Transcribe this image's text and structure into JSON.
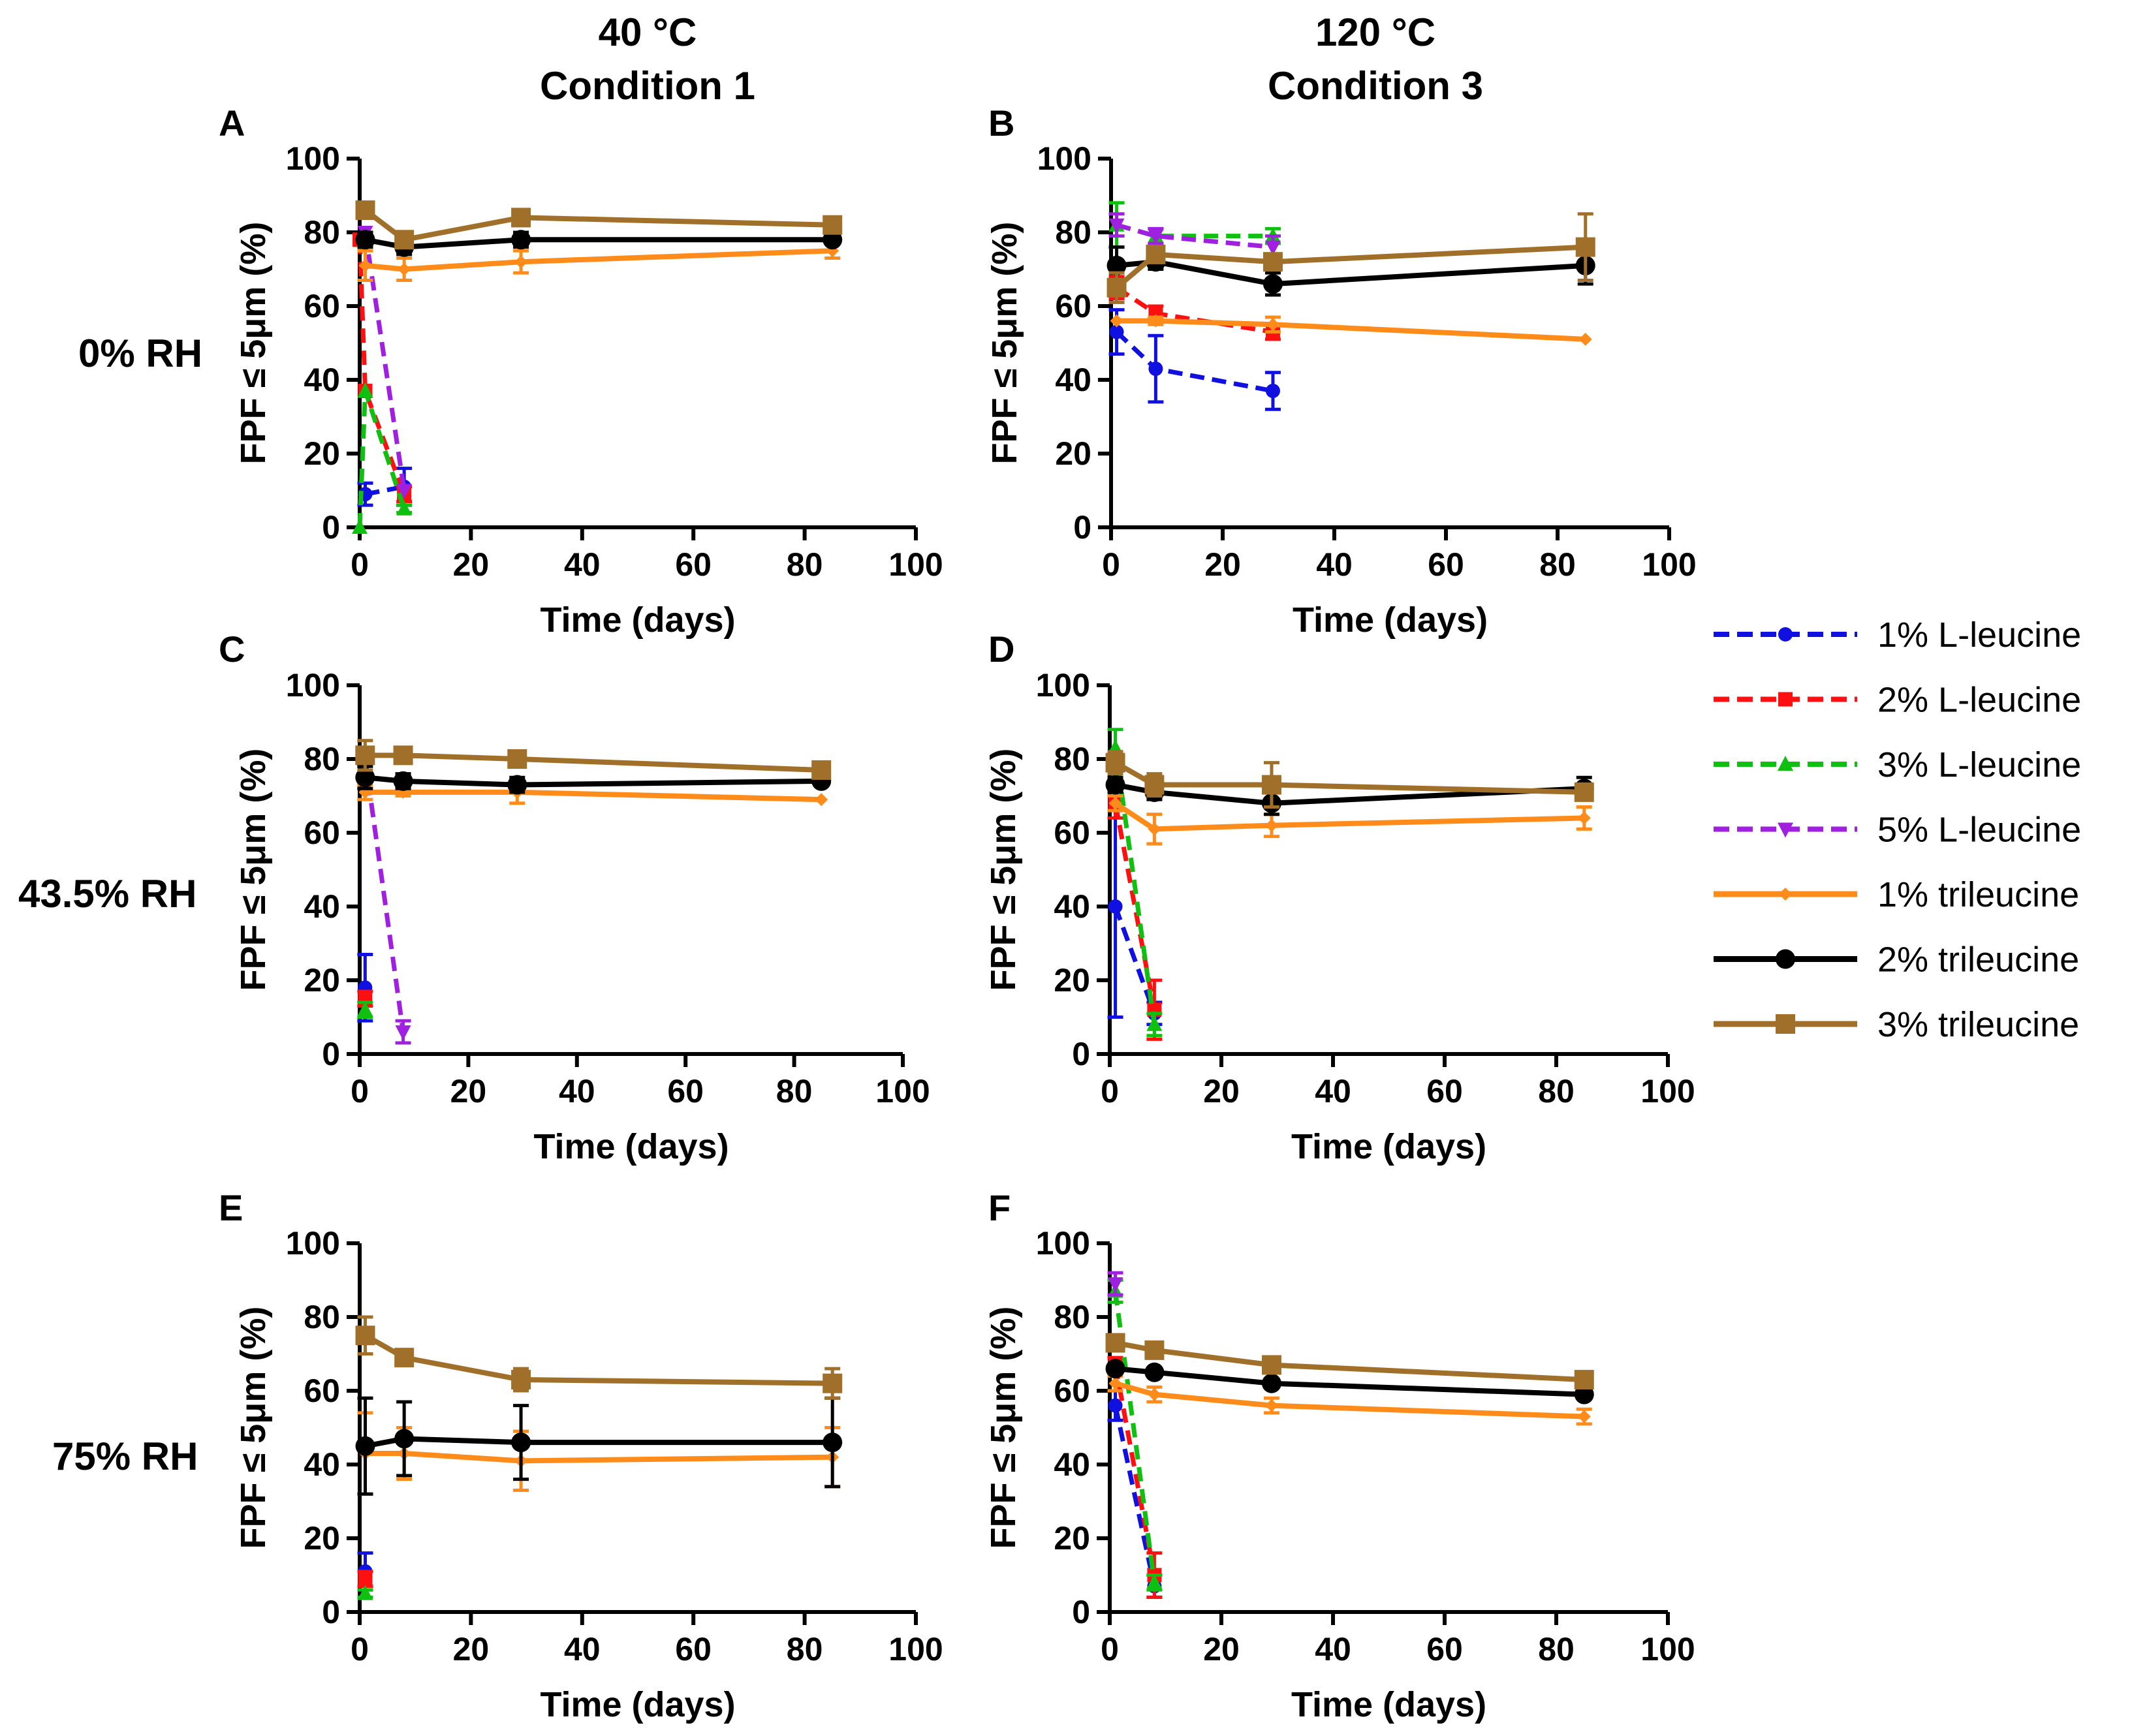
{
  "column_headers": [
    {
      "temp": "40 °C",
      "condition": "Condition 1"
    },
    {
      "temp": "120 °C",
      "condition": "Condition 3"
    }
  ],
  "row_labels": [
    "0% RH",
    "43.5% RH",
    "75% RH"
  ],
  "legend": [
    {
      "label": "1% L-leucine",
      "color": "#1010e0",
      "dash": true,
      "marker": "circle"
    },
    {
      "label": "2% L-leucine",
      "color": "#ff1010",
      "dash": true,
      "marker": "square"
    },
    {
      "label": "3% L-leucine",
      "color": "#10c010",
      "dash": true,
      "marker": "triangle-up"
    },
    {
      "label": "5% L-leucine",
      "color": "#a020e0",
      "dash": true,
      "marker": "triangle-down"
    },
    {
      "label": "1% trileucine",
      "color": "#ff8c1a",
      "dash": false,
      "marker": "diamond"
    },
    {
      "label": "2% trileucine",
      "color": "#000000",
      "dash": false,
      "marker": "circle-lg"
    },
    {
      "label": "3% trileucine",
      "color": "#a0702a",
      "dash": false,
      "marker": "square-lg"
    }
  ],
  "chart_data": [
    {
      "type": "line",
      "panel": "A",
      "xlabel": "Time (days)",
      "ylabel": "FPF ≤ 5μm (%)",
      "xlim": [
        0,
        100
      ],
      "ylim": [
        0,
        100
      ],
      "xticks": [
        "0",
        "20",
        "40",
        "60",
        "80",
        "100"
      ],
      "yticks": [
        "0",
        "20",
        "40",
        "60",
        "80",
        "100"
      ],
      "series": [
        {
          "name": "1% L-leucine",
          "x": [
            1,
            8
          ],
          "y": [
            9,
            11
          ],
          "err": [
            3,
            5
          ]
        },
        {
          "name": "2% L-leucine",
          "x": [
            0,
            1,
            8
          ],
          "y": [
            78,
            37,
            9
          ],
          "err": [
            0,
            0,
            2
          ]
        },
        {
          "name": "3% L-leucine",
          "x": [
            0,
            1,
            8
          ],
          "y": [
            0,
            37,
            5
          ],
          "err": [
            0,
            0,
            1
          ]
        },
        {
          "name": "5% L-leucine",
          "x": [
            1,
            8
          ],
          "y": [
            80,
            10
          ],
          "err": [
            0,
            0
          ]
        },
        {
          "name": "1% trileucine",
          "x": [
            1,
            8,
            29,
            85
          ],
          "y": [
            71,
            70,
            72,
            75
          ],
          "err": [
            4,
            3,
            3,
            2
          ]
        },
        {
          "name": "2% trileucine",
          "x": [
            1,
            8,
            29,
            85
          ],
          "y": [
            78,
            76,
            78,
            78
          ],
          "err": [
            2,
            2,
            2,
            1
          ]
        },
        {
          "name": "3% trileucine",
          "x": [
            1,
            8,
            29,
            85
          ],
          "y": [
            86,
            78,
            84,
            82
          ],
          "err": [
            1,
            1,
            1,
            1
          ]
        }
      ]
    },
    {
      "type": "line",
      "panel": "B",
      "xlabel": "Time (days)",
      "ylabel": "FPF ≤ 5μm (%)",
      "xlim": [
        0,
        100
      ],
      "ylim": [
        0,
        100
      ],
      "xticks": [
        "0",
        "20",
        "40",
        "60",
        "80",
        "100"
      ],
      "yticks": [
        "0",
        "20",
        "40",
        "60",
        "80",
        "100"
      ],
      "series": [
        {
          "name": "1% L-leucine",
          "x": [
            1,
            8,
            29
          ],
          "y": [
            53,
            43,
            37
          ],
          "err": [
            6,
            9,
            5
          ]
        },
        {
          "name": "2% L-leucine",
          "x": [
            1,
            8,
            29
          ],
          "y": [
            65,
            58,
            53
          ],
          "err": [
            3,
            2,
            2
          ]
        },
        {
          "name": "3% L-leucine",
          "x": [
            1,
            8,
            29
          ],
          "y": [
            82,
            79,
            79
          ],
          "err": [
            6,
            2,
            2
          ]
        },
        {
          "name": "5% L-leucine",
          "x": [
            1,
            8,
            29
          ],
          "y": [
            82,
            79,
            76
          ],
          "err": [
            3,
            2,
            3
          ]
        },
        {
          "name": "1% trileucine",
          "x": [
            1,
            8,
            29,
            85
          ],
          "y": [
            56,
            56,
            55,
            51
          ],
          "err": [
            0,
            1,
            2,
            0
          ]
        },
        {
          "name": "2% trileucine",
          "x": [
            1,
            8,
            29,
            85
          ],
          "y": [
            71,
            72,
            66,
            71
          ],
          "err": [
            5,
            2,
            3,
            5
          ]
        },
        {
          "name": "3% trileucine",
          "x": [
            1,
            8,
            29,
            85
          ],
          "y": [
            65,
            74,
            72,
            76
          ],
          "err": [
            4,
            1,
            2,
            9
          ]
        }
      ]
    },
    {
      "type": "line",
      "panel": "C",
      "xlabel": "Time (days)",
      "ylabel": "FPF ≤ 5μm (%)",
      "xlim": [
        0,
        100
      ],
      "ylim": [
        0,
        100
      ],
      "xticks": [
        "0",
        "20",
        "40",
        "60",
        "80",
        "100"
      ],
      "yticks": [
        "0",
        "20",
        "40",
        "60",
        "80",
        "100"
      ],
      "series": [
        {
          "name": "1% L-leucine",
          "x": [
            1
          ],
          "y": [
            18
          ],
          "err": [
            9
          ]
        },
        {
          "name": "2% L-leucine",
          "x": [
            1
          ],
          "y": [
            15
          ],
          "err": [
            2
          ]
        },
        {
          "name": "3% L-leucine",
          "x": [
            1
          ],
          "y": [
            12
          ],
          "err": [
            2
          ]
        },
        {
          "name": "5% L-leucine",
          "x": [
            1,
            8
          ],
          "y": [
            80,
            6
          ],
          "err": [
            1,
            3
          ]
        },
        {
          "name": "1% trileucine",
          "x": [
            1,
            8,
            29,
            85
          ],
          "y": [
            71,
            71,
            71,
            69
          ],
          "err": [
            2,
            1,
            3,
            0
          ]
        },
        {
          "name": "2% trileucine",
          "x": [
            1,
            8,
            29,
            85
          ],
          "y": [
            75,
            74,
            73,
            74
          ],
          "err": [
            3,
            2,
            2,
            1
          ]
        },
        {
          "name": "3% trileucine",
          "x": [
            1,
            8,
            29,
            85
          ],
          "y": [
            81,
            81,
            80,
            77
          ],
          "err": [
            4,
            1,
            1,
            1
          ]
        }
      ]
    },
    {
      "type": "line",
      "panel": "D",
      "xlabel": "Time (days)",
      "ylabel": "FPF ≤ 5μm (%)",
      "xlim": [
        0,
        100
      ],
      "ylim": [
        0,
        100
      ],
      "xticks": [
        "0",
        "20",
        "40",
        "60",
        "80",
        "100"
      ],
      "yticks": [
        "0",
        "20",
        "40",
        "60",
        "80",
        "100"
      ],
      "series": [
        {
          "name": "1% L-leucine",
          "x": [
            1,
            8
          ],
          "y": [
            40,
            11
          ],
          "err": [
            30,
            3
          ]
        },
        {
          "name": "2% L-leucine",
          "x": [
            1,
            8
          ],
          "y": [
            68,
            12
          ],
          "err": [
            4,
            8
          ]
        },
        {
          "name": "3% L-leucine",
          "x": [
            1,
            8
          ],
          "y": [
            83,
            8
          ],
          "err": [
            5,
            3
          ]
        },
        {
          "name": "1% trileucine",
          "x": [
            1,
            8,
            29,
            85
          ],
          "y": [
            68,
            61,
            62,
            64
          ],
          "err": [
            2,
            4,
            3,
            3
          ]
        },
        {
          "name": "2% trileucine",
          "x": [
            1,
            8,
            29,
            85
          ],
          "y": [
            73,
            71,
            68,
            72
          ],
          "err": [
            2,
            2,
            3,
            3
          ]
        },
        {
          "name": "3% trileucine",
          "x": [
            1,
            8,
            29,
            85
          ],
          "y": [
            79,
            73,
            73,
            71
          ],
          "err": [
            3,
            3,
            6,
            2
          ]
        }
      ]
    },
    {
      "type": "line",
      "panel": "E",
      "xlabel": "Time (days)",
      "ylabel": "FPF ≤ 5μm (%)",
      "xlim": [
        0,
        100
      ],
      "ylim": [
        0,
        100
      ],
      "xticks": [
        "0",
        "20",
        "40",
        "60",
        "80",
        "100"
      ],
      "yticks": [
        "0",
        "20",
        "40",
        "60",
        "80",
        "100"
      ],
      "series": [
        {
          "name": "1% L-leucine",
          "x": [
            1
          ],
          "y": [
            11
          ],
          "err": [
            5
          ]
        },
        {
          "name": "2% L-leucine",
          "x": [
            1
          ],
          "y": [
            9
          ],
          "err": [
            2
          ]
        },
        {
          "name": "3% L-leucine",
          "x": [
            1
          ],
          "y": [
            5
          ],
          "err": [
            1
          ]
        },
        {
          "name": "1% trileucine",
          "x": [
            1,
            8,
            29,
            85
          ],
          "y": [
            43,
            43,
            41,
            42
          ],
          "err": [
            11,
            7,
            8,
            8
          ]
        },
        {
          "name": "2% trileucine",
          "x": [
            1,
            8,
            29,
            85
          ],
          "y": [
            45,
            47,
            46,
            46
          ],
          "err": [
            13,
            10,
            10,
            12
          ]
        },
        {
          "name": "3% trileucine",
          "x": [
            1,
            8,
            29,
            85
          ],
          "y": [
            75,
            69,
            63,
            62
          ],
          "err": [
            5,
            1,
            3,
            4
          ]
        }
      ]
    },
    {
      "type": "line",
      "panel": "F",
      "xlabel": "Time (days)",
      "ylabel": "FPF ≤ 5μm (%)",
      "xlim": [
        0,
        100
      ],
      "ylim": [
        0,
        100
      ],
      "xticks": [
        "0",
        "20",
        "40",
        "60",
        "80",
        "100"
      ],
      "yticks": [
        "0",
        "20",
        "40",
        "60",
        "80",
        "100"
      ],
      "series": [
        {
          "name": "1% L-leucine",
          "x": [
            1,
            8
          ],
          "y": [
            56,
            7
          ],
          "err": [
            4,
            3
          ]
        },
        {
          "name": "2% L-leucine",
          "x": [
            1,
            8
          ],
          "y": [
            67,
            10
          ],
          "err": [
            2,
            6
          ]
        },
        {
          "name": "3% L-leucine",
          "x": [
            1,
            8
          ],
          "y": [
            87,
            8
          ],
          "err": [
            3,
            2
          ]
        },
        {
          "name": "5% L-leucine",
          "x": [
            1
          ],
          "y": [
            89
          ],
          "err": [
            3
          ]
        },
        {
          "name": "1% trileucine",
          "x": [
            1,
            8,
            29,
            85
          ],
          "y": [
            62,
            59,
            56,
            53
          ],
          "err": [
            2,
            2,
            2,
            2
          ]
        },
        {
          "name": "2% trileucine",
          "x": [
            1,
            8,
            29,
            85
          ],
          "y": [
            66,
            65,
            62,
            59
          ],
          "err": [
            1,
            1,
            1,
            1
          ]
        },
        {
          "name": "3% trileucine",
          "x": [
            1,
            8,
            29,
            85
          ],
          "y": [
            73,
            71,
            67,
            63
          ],
          "err": [
            1,
            1,
            1,
            1
          ]
        }
      ]
    }
  ]
}
